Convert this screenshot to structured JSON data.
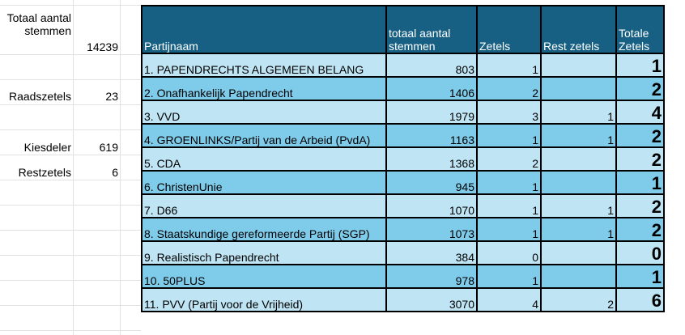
{
  "summary": {
    "total_votes_label": "Totaal aantal stemmen",
    "total_votes": "14239",
    "seats_label": "Raadszetels",
    "seats": "23",
    "quota_label": "Kiesdeler",
    "quota": "619",
    "remaining_label": "Restzetels",
    "remaining": "6"
  },
  "table": {
    "headers": [
      "Partijnaam",
      "totaal aantal stemmen",
      "Zetels",
      "Rest zetels",
      "Totale Zetels"
    ],
    "rows": [
      {
        "party": "1. PAPENDRECHTS ALGEMEEN BELANG",
        "votes": "803",
        "seats": "1",
        "rest": "",
        "total": "1"
      },
      {
        "party": "2. Onafhankelijk Papendrecht",
        "votes": "1406",
        "seats": "2",
        "rest": "",
        "total": "2"
      },
      {
        "party": "3. VVD",
        "votes": "1979",
        "seats": "3",
        "rest": "1",
        "total": "4"
      },
      {
        "party": "4. GROENLINKS/Partij van de Arbeid (PvdA)",
        "votes": "1163",
        "seats": "1",
        "rest": "1",
        "total": "2"
      },
      {
        "party": "5. CDA",
        "votes": "1368",
        "seats": "2",
        "rest": "",
        "total": "2"
      },
      {
        "party": "6. ChristenUnie",
        "votes": "945",
        "seats": "1",
        "rest": "",
        "total": "1"
      },
      {
        "party": "7. D66",
        "votes": "1070",
        "seats": "1",
        "rest": "1",
        "total": "2"
      },
      {
        "party": "8. Staatskundige gereformeerde Partij (SGP)",
        "votes": "1073",
        "seats": "1",
        "rest": "1",
        "total": "2"
      },
      {
        "party": "9. Realistisch Papendrecht",
        "votes": "384",
        "seats": "0",
        "rest": "",
        "total": "0"
      },
      {
        "party": "10. 50PLUS",
        "votes": "978",
        "seats": "1",
        "rest": "",
        "total": "1"
      },
      {
        "party": "11. PVV (Partij voor de Vrijheid)",
        "votes": "3070",
        "seats": "4",
        "rest": "2",
        "total": "6"
      }
    ]
  },
  "colors": {
    "header": "#176083",
    "row_light": "#bfe4f4",
    "row_mid": "#7fcbea"
  }
}
